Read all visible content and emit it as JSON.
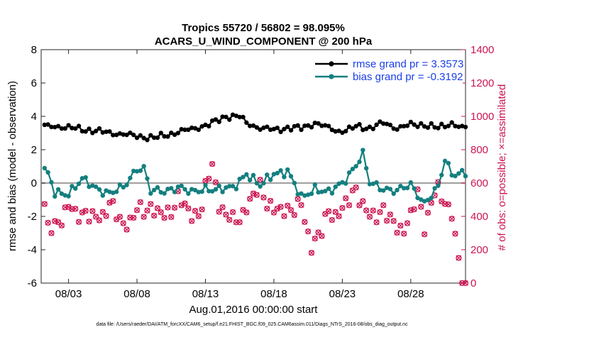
{
  "chart_data": {
    "type": "line",
    "title_line1": "Tropics 55720 / 56802 = 98.095%",
    "title_line2": "ACARS_U_WIND_COMPONENT @ 200 hPa",
    "xlabel": "Aug.01,2016 00:00:00 start",
    "ylabel_left": "rmse and bias (model - observation)",
    "ylabel_right": "# of obs: o=possible; ×=assimilated",
    "ylim_left": [
      -6,
      8
    ],
    "ylim_right": [
      0,
      1400
    ],
    "x_days_range": [
      1,
      32
    ],
    "yticks_left": [
      "-6",
      "-4",
      "-2",
      "0",
      "2",
      "4",
      "6",
      "8"
    ],
    "yticks_right": [
      "0",
      "200",
      "400",
      "600",
      "800",
      "1000",
      "1200",
      "1400"
    ],
    "xtick_days": [
      3,
      8,
      13,
      18,
      23,
      28
    ],
    "xtick_labels": [
      "08/03",
      "08/08",
      "08/13",
      "08/18",
      "08/23",
      "08/28"
    ],
    "footnote": "data file: /Users/raeder/DAI/ATM_forcXX/CAM6_setup/f.e21.FHIST_BGC.f09_025.CAM6assim.011/Diags_NTrS_2016-08/obs_diag_output.nc",
    "colors": {
      "rmse": "#000000",
      "bias": "#147f7f",
      "obs": "#cc1450",
      "zero_line": "#a0a0a0",
      "legend_text": "#1a3ee8"
    },
    "series": [
      {
        "name": "rmse grand pr = 3.3573",
        "x_days": [
          1,
          2.25,
          9.2,
          12.25,
          13.25,
          14.5,
          15,
          15.5,
          16,
          17,
          18,
          19,
          20,
          21,
          22.75,
          23.5,
          24,
          25,
          26,
          27,
          28,
          29,
          30,
          31,
          31.75
        ],
        "values": [
          3.4,
          3.4,
          2.7,
          3.3,
          3.5,
          4.0,
          4.0,
          4.0,
          3.6,
          3.3,
          3.2,
          3.3,
          3.3,
          3.6,
          3.1,
          3.2,
          3.4,
          3.3,
          3.6,
          3.3,
          3.5,
          3.5,
          3.3,
          3.6,
          3.3
        ]
      },
      {
        "name": "bias grand pr = -0.3192",
        "x_days": [
          1,
          1.5,
          2,
          3,
          4,
          5,
          6,
          7,
          8,
          8.5,
          9,
          10,
          11,
          12,
          13,
          14,
          15,
          16,
          17,
          18,
          19,
          20,
          21,
          22,
          23,
          24,
          24.5,
          25,
          26,
          27,
          28,
          29,
          30,
          30.5,
          31,
          31.75
        ],
        "values": [
          1.0,
          0.5,
          -0.6,
          -0.6,
          0.2,
          -0.3,
          -0.6,
          -0.3,
          0.9,
          0.9,
          -0.5,
          -0.5,
          -0.2,
          -0.6,
          -0.3,
          -0.4,
          -0.3,
          0.6,
          -0.2,
          0.6,
          0.7,
          -0.9,
          -0.3,
          -0.6,
          0.0,
          1.1,
          1.7,
          0.0,
          -0.3,
          -0.5,
          -0.1,
          -1.2,
          -0.3,
          1.4,
          0.6,
          0.6
        ]
      },
      {
        "name": "# obs assimilated",
        "axis": "right",
        "x_days": [
          1,
          1.5,
          2.25,
          3,
          4,
          5,
          6,
          7,
          8,
          9,
          10,
          11,
          12,
          12.75,
          13.5,
          14,
          15,
          16,
          17,
          18,
          19,
          20,
          20.75,
          21.5,
          22,
          23,
          24,
          25,
          26,
          27,
          28,
          28.5,
          29,
          29.5,
          30,
          31,
          31.75
        ],
        "values": [
          560,
          330,
          370,
          440,
          420,
          380,
          470,
          350,
          420,
          460,
          390,
          510,
          400,
          460,
          720,
          470,
          360,
          450,
          580,
          420,
          450,
          450,
          230,
          310,
          420,
          430,
          570,
          380,
          450,
          310,
          390,
          540,
          330,
          510,
          540,
          430,
          0
        ]
      }
    ]
  }
}
